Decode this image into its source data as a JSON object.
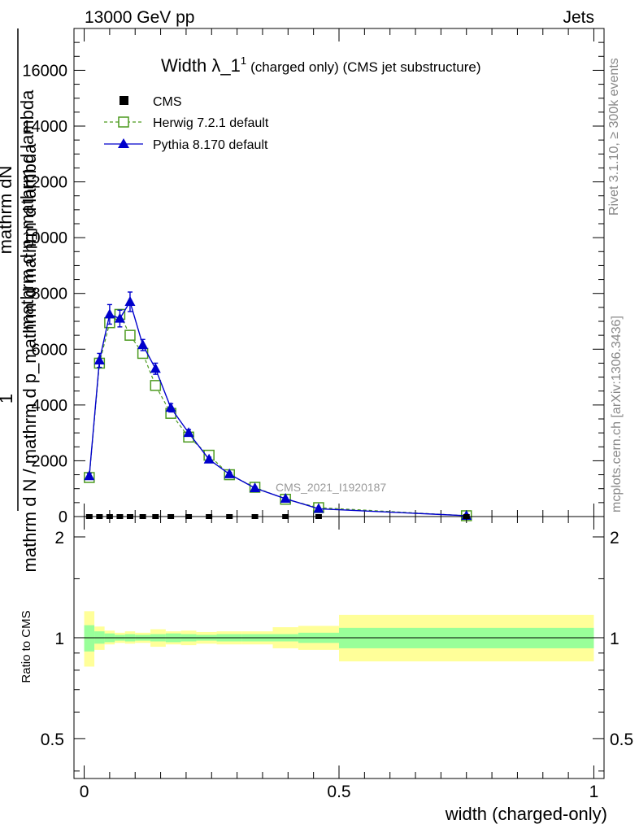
{
  "header": {
    "energy_label": "13000 GeV pp",
    "process_label": "Jets"
  },
  "side_labels": {
    "rivet": "Rivet 3.1.10, ≥ 300k events",
    "mcplots": "mcplots.cern.ch [arXiv:1306.3436]"
  },
  "chart_data": [
    {
      "type": "line",
      "title_main": "Width λ_1",
      "title_sup": "1",
      "title_rest": "(charged only) (CMS jet substructure)",
      "ylabel_numerator": "mathrm dN",
      "ylabel_fraction_bottom": "mathrm d p_mathrm d lambda",
      "ylabel_one": "1",
      "ylabel_denominator": "mathrm d N / mathrm d p_mathrm d mathrm d lambda",
      "watermark": "CMS_2021_I1920187",
      "xlim": [
        -0.02,
        1.02
      ],
      "ylim": [
        0,
        17500
      ],
      "yticks": [
        0,
        2000,
        4000,
        6000,
        8000,
        10000,
        12000,
        14000,
        16000
      ],
      "grid": false,
      "legend_position": "top-left",
      "series": [
        {
          "name": "CMS",
          "marker": "square-filled",
          "color": "#000000",
          "x": [
            0.01,
            0.03,
            0.05,
            0.07,
            0.09,
            0.115,
            0.14,
            0.17,
            0.205,
            0.245,
            0.285,
            0.335,
            0.395,
            0.46,
            0.75
          ],
          "y": [
            0,
            0,
            0,
            0,
            0,
            0,
            0,
            0,
            0,
            0,
            0,
            0,
            0,
            0,
            0
          ]
        },
        {
          "name": "Herwig 7.2.1 default",
          "marker": "square-open",
          "line": "dashed",
          "color": "#4c9a1f",
          "x": [
            0.01,
            0.03,
            0.05,
            0.07,
            0.09,
            0.115,
            0.14,
            0.17,
            0.205,
            0.245,
            0.285,
            0.335,
            0.395,
            0.46,
            0.75
          ],
          "y": [
            1400,
            5500,
            6950,
            7250,
            6500,
            5850,
            4700,
            3700,
            2850,
            2200,
            1500,
            1050,
            620,
            320,
            30
          ]
        },
        {
          "name": "Pythia 8.170 default",
          "marker": "triangle-filled",
          "line": "solid",
          "color": "#0000cc",
          "x": [
            0.01,
            0.03,
            0.05,
            0.07,
            0.09,
            0.115,
            0.14,
            0.17,
            0.205,
            0.245,
            0.285,
            0.335,
            0.395,
            0.46,
            0.75
          ],
          "y": [
            1450,
            5600,
            7250,
            7100,
            7700,
            6150,
            5300,
            3900,
            3000,
            2050,
            1520,
            1020,
            640,
            280,
            30
          ],
          "yerr": [
            100,
            250,
            350,
            300,
            350,
            200,
            200,
            150,
            120,
            80,
            70,
            50,
            40,
            30,
            10
          ]
        }
      ]
    },
    {
      "type": "area",
      "ylabel": "Ratio to CMS",
      "xlabel": "width (charged-only)",
      "xlim": [
        -0.02,
        1.02
      ],
      "ylim": [
        0.38,
        2.3
      ],
      "ylog": true,
      "yticks": [
        0.5,
        1,
        2
      ],
      "xticks": [
        0,
        0.5,
        1
      ],
      "xtick_labels": [
        "0",
        "0.5",
        "1"
      ],
      "reference_line": 1,
      "bin_edges": [
        0.0,
        0.02,
        0.04,
        0.06,
        0.08,
        0.1,
        0.13,
        0.16,
        0.19,
        0.22,
        0.26,
        0.31,
        0.37,
        0.42,
        0.5,
        1.0
      ],
      "inner_band": {
        "color": "#99ff99",
        "lower": [
          0.91,
          0.96,
          0.97,
          0.98,
          0.975,
          0.98,
          0.975,
          0.97,
          0.975,
          0.98,
          0.975,
          0.975,
          0.975,
          0.965,
          0.93
        ],
        "upper": [
          1.09,
          1.045,
          1.03,
          1.02,
          1.025,
          1.02,
          1.025,
          1.03,
          1.025,
          1.02,
          1.025,
          1.025,
          1.025,
          1.035,
          1.07
        ]
      },
      "outer_band": {
        "color": "#ffff99",
        "lower": [
          0.82,
          0.92,
          0.955,
          0.965,
          0.96,
          0.965,
          0.94,
          0.955,
          0.95,
          0.96,
          0.955,
          0.955,
          0.93,
          0.92,
          0.85
        ],
        "upper": [
          1.2,
          1.08,
          1.05,
          1.035,
          1.045,
          1.035,
          1.06,
          1.045,
          1.05,
          1.04,
          1.045,
          1.045,
          1.075,
          1.085,
          1.17
        ]
      }
    }
  ]
}
